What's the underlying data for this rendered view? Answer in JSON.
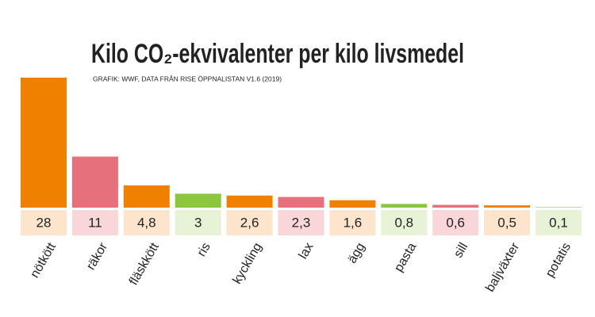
{
  "chart_data": {
    "type": "bar",
    "title": "Kilo CO₂-ekvivalenter per kilo livsmedel",
    "subtitle": "GRAFIK: WWF, DATA FRÅN RISE ÖPPNALISTAN V1.6 (2019)",
    "categories": [
      "nötkött",
      "räkor",
      "fläskkött",
      "ris",
      "kyckling",
      "lax",
      "ägg",
      "pasta",
      "sill",
      "baljväxter",
      "potatis"
    ],
    "values": [
      28,
      11,
      4.8,
      3,
      2.6,
      2.3,
      1.6,
      0.8,
      0.6,
      0.5,
      0.1
    ],
    "value_labels": [
      "28",
      "11",
      "4,8",
      "3",
      "2,6",
      "2,3",
      "1,6",
      "0,8",
      "0,6",
      "0,5",
      "0,1"
    ],
    "colors": [
      "#f08100",
      "#e6707b",
      "#f08100",
      "#8cc63f",
      "#f08100",
      "#e6707b",
      "#f08100",
      "#8cc63f",
      "#e6707b",
      "#f08100",
      "#8cc63f"
    ],
    "label_colors": [
      "#fde4cc",
      "#f9d6d9",
      "#fde4cc",
      "#e7f2d6",
      "#fde4cc",
      "#f9d6d9",
      "#fde4cc",
      "#e7f2d6",
      "#f9d6d9",
      "#fde4cc",
      "#e7f2d6"
    ]
  }
}
